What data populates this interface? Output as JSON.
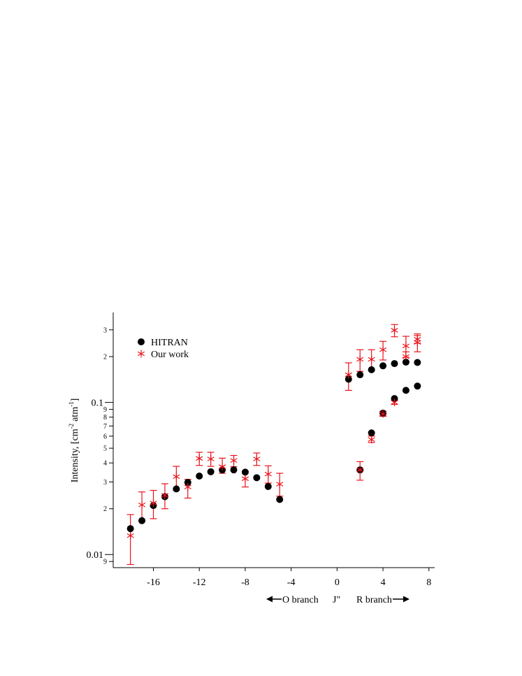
{
  "chart_data": {
    "type": "scatter",
    "xlabel": "J\"",
    "ylabel": "Intensity, [cm",
    "ylabel_sup1": "-2",
    "ylabel_mid": "atm",
    "ylabel_sup2": "-1",
    "ylabel_end": "]",
    "y_scale": "log",
    "xlim": [
      -19.5,
      8.5
    ],
    "ylim": [
      0.0082,
      0.39
    ],
    "x_ticks": [
      -16,
      -12,
      -8,
      -4,
      0,
      4,
      8
    ],
    "x_tick_labels": [
      "-16",
      "-12",
      "-8",
      "-4",
      "0",
      "4",
      "8"
    ],
    "y_major_ticks": [
      0.01,
      0.1
    ],
    "y_major_labels": [
      "0.01",
      "0.1"
    ],
    "y_minor_ticks": [
      0.009,
      0.02,
      0.03,
      0.04,
      0.05,
      0.06,
      0.07,
      0.08,
      0.09,
      0.2,
      0.3
    ],
    "y_minor_labels": [
      "9",
      "2",
      "3",
      "4",
      "5",
      "6",
      "7",
      "8",
      "9",
      "2",
      "3"
    ],
    "legend_position": "top-left",
    "branch_labels": {
      "o_branch": "O branch",
      "r_branch": "R branch"
    },
    "series": [
      {
        "name": "HITRAN",
        "marker": "circle",
        "color": "#000000",
        "points": [
          {
            "x": -18,
            "y": 0.0148
          },
          {
            "x": -17,
            "y": 0.0167
          },
          {
            "x": -16,
            "y": 0.021
          },
          {
            "x": -15,
            "y": 0.024
          },
          {
            "x": -14,
            "y": 0.027
          },
          {
            "x": -13,
            "y": 0.0298
          },
          {
            "x": -12,
            "y": 0.0328
          },
          {
            "x": -11,
            "y": 0.035
          },
          {
            "x": -10,
            "y": 0.036
          },
          {
            "x": -9,
            "y": 0.036
          },
          {
            "x": -8,
            "y": 0.0348
          },
          {
            "x": -7,
            "y": 0.032
          },
          {
            "x": -6,
            "y": 0.028
          },
          {
            "x": -5,
            "y": 0.023
          },
          {
            "x": 1,
            "y": 0.142
          },
          {
            "x": 2,
            "y": 0.152
          },
          {
            "x": 3,
            "y": 0.164
          },
          {
            "x": 4,
            "y": 0.174
          },
          {
            "x": 5,
            "y": 0.18
          },
          {
            "x": 6,
            "y": 0.184
          },
          {
            "x": 7,
            "y": 0.183
          },
          {
            "x": 2,
            "y": 0.036
          },
          {
            "x": 3,
            "y": 0.063
          },
          {
            "x": 4,
            "y": 0.085
          },
          {
            "x": 5,
            "y": 0.106
          },
          {
            "x": 6,
            "y": 0.12
          },
          {
            "x": 7,
            "y": 0.128
          }
        ]
      },
      {
        "name": "Our work",
        "marker": "asterisk",
        "color": "#e8141b",
        "points": [
          {
            "x": -18,
            "y": 0.0133,
            "lo": 0.0086,
            "hi": 0.0183
          },
          {
            "x": -17,
            "y": 0.0212,
            "lo": 0.0165,
            "hi": 0.0258
          },
          {
            "x": -16,
            "y": 0.0218,
            "lo": 0.0172,
            "hi": 0.0264
          },
          {
            "x": -15,
            "y": 0.0245,
            "lo": 0.02,
            "hi": 0.0292
          },
          {
            "x": -14,
            "y": 0.0325,
            "lo": 0.0265,
            "hi": 0.038
          },
          {
            "x": -13,
            "y": 0.0278,
            "lo": 0.0235,
            "hi": 0.0312
          },
          {
            "x": -12,
            "y": 0.0428,
            "lo": 0.0385,
            "hi": 0.047
          },
          {
            "x": -11,
            "y": 0.0425,
            "lo": 0.038,
            "hi": 0.047
          },
          {
            "x": -10,
            "y": 0.0378,
            "lo": 0.0342,
            "hi": 0.043
          },
          {
            "x": -9,
            "y": 0.0415,
            "lo": 0.0378,
            "hi": 0.0448
          },
          {
            "x": -8,
            "y": 0.0315,
            "lo": 0.0278,
            "hi": 0.0352
          },
          {
            "x": -7,
            "y": 0.0425,
            "lo": 0.0385,
            "hi": 0.0465
          },
          {
            "x": -6,
            "y": 0.0338,
            "lo": 0.0295,
            "hi": 0.0383
          },
          {
            "x": -5,
            "y": 0.029,
            "lo": 0.0242,
            "hi": 0.0342
          },
          {
            "x": 1,
            "y": 0.152,
            "lo": 0.12,
            "hi": 0.182
          },
          {
            "x": 2,
            "y": 0.192,
            "lo": 0.16,
            "hi": 0.222
          },
          {
            "x": 3,
            "y": 0.192,
            "lo": 0.162,
            "hi": 0.222
          },
          {
            "x": 4,
            "y": 0.222,
            "lo": 0.19,
            "hi": 0.252
          },
          {
            "x": 5,
            "y": 0.298,
            "lo": 0.27,
            "hi": 0.325
          },
          {
            "x": 6,
            "y": 0.235,
            "lo": 0.198,
            "hi": 0.272
          },
          {
            "x": 7,
            "y": 0.248,
            "lo": 0.215,
            "hi": 0.282
          },
          {
            "x": 2,
            "y": 0.036,
            "lo": 0.0308,
            "hi": 0.0408
          },
          {
            "x": 3,
            "y": 0.057,
            "lo": 0.0545,
            "hi": 0.06
          },
          {
            "x": 4,
            "y": 0.084,
            "lo": 0.081,
            "hi": 0.0875
          },
          {
            "x": 5,
            "y": 0.1,
            "lo": 0.097,
            "hi": 0.103
          },
          {
            "x": 6,
            "y": 0.2,
            "lo": 0.185,
            "hi": 0.215
          },
          {
            "x": 7,
            "y": 0.26,
            "lo": 0.245,
            "hi": 0.275
          }
        ]
      }
    ]
  }
}
